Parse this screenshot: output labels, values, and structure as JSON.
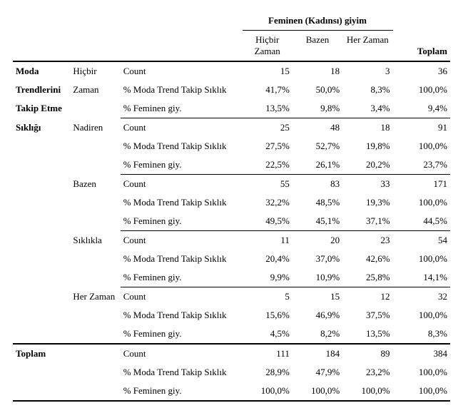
{
  "header": {
    "group_title": "Feminen (Kadınsı) giyim",
    "subheaders": [
      "Hiçbir Zaman",
      "Bazen",
      "Her Zaman"
    ],
    "total_label": "Toplam"
  },
  "row_label_lines": [
    "Moda",
    "Trendlerini",
    "Takip Etme",
    "Sıklığı"
  ],
  "metrics": {
    "count": "Count",
    "pct_trend": "% Moda Trend Takip Sıklık",
    "pct_fem": "% Feminen giy.",
    "pct_fem_sp": "% Feminen  giy."
  },
  "groups": [
    {
      "label_lines": [
        "Hiçbir",
        "Zaman"
      ],
      "count": [
        "15",
        "18",
        "3",
        "36"
      ],
      "pct_trend": [
        "41,7%",
        "50,0%",
        "8,3%",
        "100,0%"
      ],
      "pct_fem": [
        "13,5%",
        "9,8%",
        "3,4%",
        "9,4%"
      ]
    },
    {
      "label_lines": [
        "Nadiren"
      ],
      "count": [
        "25",
        "48",
        "18",
        "91"
      ],
      "pct_trend": [
        "27,5%",
        "52,7%",
        "19,8%",
        "100,0%"
      ],
      "pct_fem": [
        "22,5%",
        "26,1%",
        "20,2%",
        "23,7%"
      ]
    },
    {
      "label_lines": [
        "Bazen"
      ],
      "count": [
        "55",
        "83",
        "33",
        "171"
      ],
      "pct_trend": [
        "32,2%",
        "48,5%",
        "19,3%",
        "100,0%"
      ],
      "pct_fem": [
        "49,5%",
        "45,1%",
        "37,1%",
        "44,5%"
      ]
    },
    {
      "label_lines": [
        "Sıklıkla"
      ],
      "count": [
        "11",
        "20",
        "23",
        "54"
      ],
      "pct_trend": [
        "20,4%",
        "37,0%",
        "42,6%",
        "100,0%"
      ],
      "pct_fem": [
        "9,9%",
        "10,9%",
        "25,8%",
        "14,1%"
      ]
    },
    {
      "label_lines": [
        "Her Zaman"
      ],
      "count": [
        "5",
        "15",
        "12",
        "32"
      ],
      "pct_trend": [
        "15,6%",
        "46,9%",
        "37,5%",
        "100,0%"
      ],
      "pct_fem": [
        "4,5%",
        "8,2%",
        "13,5%",
        "8,3%"
      ]
    }
  ],
  "total": {
    "label": "Toplam",
    "count": [
      "111",
      "184",
      "89",
      "384"
    ],
    "pct_trend": [
      "28,9%",
      "47,9%",
      "23,2%",
      "100,0%"
    ],
    "pct_fem": [
      "100,0%",
      "100,0%",
      "100,0%",
      "100,0%"
    ]
  }
}
